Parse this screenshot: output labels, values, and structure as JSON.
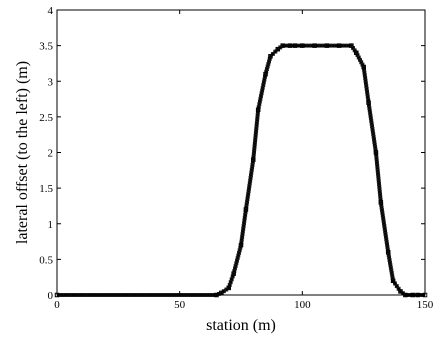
{
  "chart_data": {
    "type": "line",
    "title": "",
    "xlabel": "station (m)",
    "ylabel": "lateral offset (to the left) (m)",
    "xlim": [
      0,
      150
    ],
    "ylim": [
      0,
      4
    ],
    "grid": false,
    "x_ticks": [
      {
        "value": 0,
        "label": "0"
      },
      {
        "value": 50,
        "label": "50"
      },
      {
        "value": 100,
        "label": "100"
      },
      {
        "value": 150,
        "label": "150"
      }
    ],
    "y_ticks": [
      {
        "value": 0,
        "label": "0"
      },
      {
        "value": 0.5,
        "label": "0.5"
      },
      {
        "value": 1,
        "label": "1"
      },
      {
        "value": 1.5,
        "label": "1.5"
      },
      {
        "value": 2,
        "label": "2"
      },
      {
        "value": 2.5,
        "label": "2.5"
      },
      {
        "value": 3,
        "label": "3"
      },
      {
        "value": 3.5,
        "label": "3.5"
      },
      {
        "value": 4,
        "label": "4"
      }
    ],
    "series": [
      {
        "color": "#000000",
        "marker": "square",
        "x": [
          0,
          65,
          67,
          70,
          72,
          75,
          77,
          80,
          82,
          85,
          87,
          90,
          92,
          95,
          97,
          100,
          105,
          110,
          115,
          120,
          122,
          125,
          127,
          130,
          132,
          135,
          137,
          140,
          142,
          145,
          147,
          150
        ],
        "y": [
          0,
          0,
          0.03,
          0.1,
          0.3,
          0.7,
          1.2,
          1.9,
          2.6,
          3.1,
          3.35,
          3.45,
          3.5,
          3.5,
          3.5,
          3.5,
          3.5,
          3.5,
          3.5,
          3.5,
          3.4,
          3.2,
          2.7,
          2.0,
          1.3,
          0.6,
          0.2,
          0.05,
          0,
          0,
          0,
          0
        ]
      }
    ]
  }
}
